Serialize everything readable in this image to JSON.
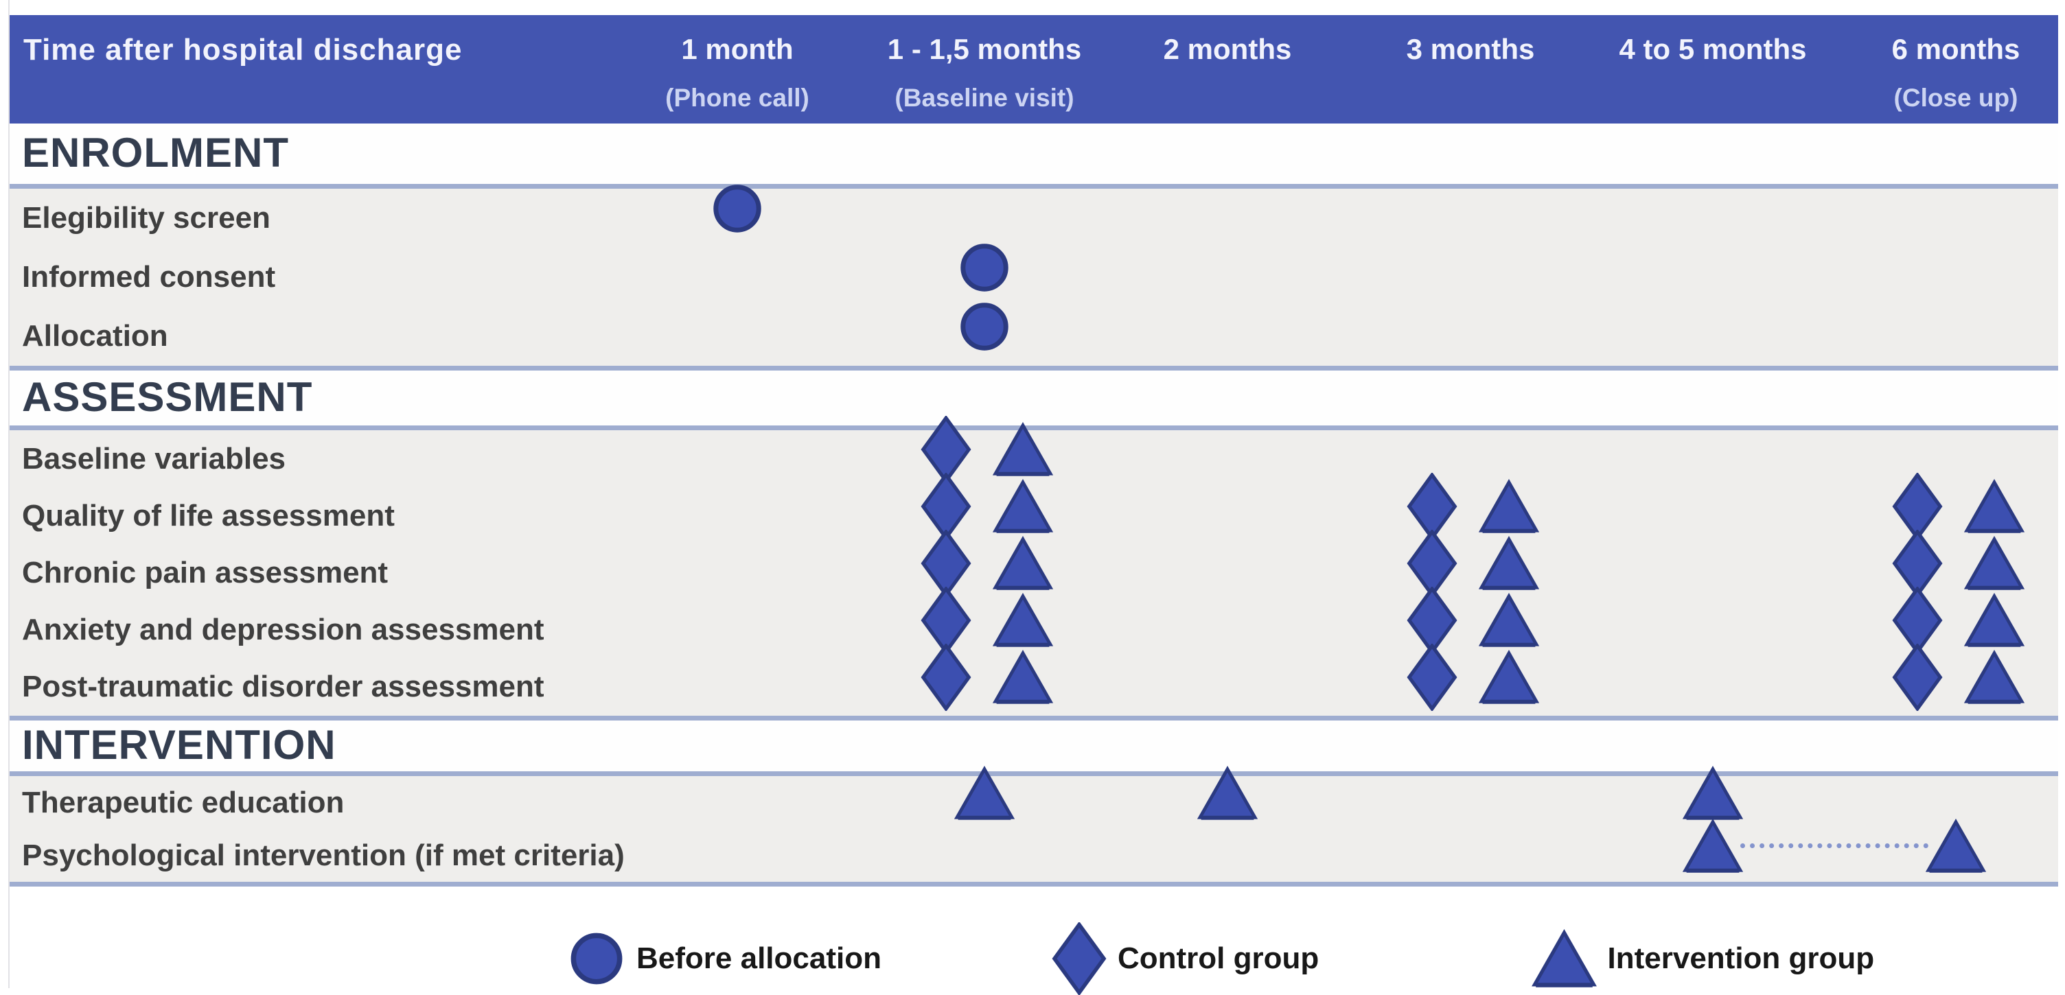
{
  "figure": {
    "title": "Time after hospital discharge",
    "columns": [
      {
        "label": "1 month",
        "sublabel": "(Phone call)"
      },
      {
        "label": "1 - 1,5 months",
        "sublabel": "(Baseline visit)"
      },
      {
        "label": "2 months",
        "sublabel": ""
      },
      {
        "label": "3 months",
        "sublabel": ""
      },
      {
        "label": "4 to 5 months",
        "sublabel": ""
      },
      {
        "label": "6 months",
        "sublabel": "(Close up)"
      }
    ],
    "sections": [
      {
        "name": "ENROLMENT",
        "rows": [
          {
            "label": "Elegibility screen",
            "cells": [
              [
                "circle"
              ],
              [],
              [],
              [],
              [],
              []
            ]
          },
          {
            "label": "Informed consent",
            "cells": [
              [],
              [
                "circle"
              ],
              [],
              [],
              [],
              []
            ]
          },
          {
            "label": "Allocation",
            "cells": [
              [],
              [
                "circle"
              ],
              [],
              [],
              [],
              []
            ]
          }
        ]
      },
      {
        "name": "ASSESSMENT",
        "rows": [
          {
            "label": "Baseline variables",
            "cells": [
              [],
              [
                "diamond",
                "triangle"
              ],
              [],
              [],
              [],
              []
            ]
          },
          {
            "label": "Quality of life assessment",
            "cells": [
              [],
              [
                "diamond",
                "triangle"
              ],
              [],
              [
                "diamond",
                "triangle"
              ],
              [],
              [
                "diamond",
                "triangle"
              ]
            ]
          },
          {
            "label": "Chronic pain assessment",
            "cells": [
              [],
              [
                "diamond",
                "triangle"
              ],
              [],
              [
                "diamond",
                "triangle"
              ],
              [],
              [
                "diamond",
                "triangle"
              ]
            ]
          },
          {
            "label": "Anxiety and depression assessment",
            "cells": [
              [],
              [
                "diamond",
                "triangle"
              ],
              [],
              [
                "diamond",
                "triangle"
              ],
              [],
              [
                "diamond",
                "triangle"
              ]
            ]
          },
          {
            "label": "Post-traumatic disorder assessment",
            "cells": [
              [],
              [
                "diamond",
                "triangle"
              ],
              [],
              [
                "diamond",
                "triangle"
              ],
              [],
              [
                "diamond",
                "triangle"
              ]
            ]
          }
        ]
      },
      {
        "name": "INTERVENTION",
        "rows": [
          {
            "label": "Therapeutic education",
            "cells": [
              [],
              [
                "triangle"
              ],
              [
                "triangle"
              ],
              [],
              [
                "triangle"
              ],
              []
            ]
          },
          {
            "label": "Psychological intervention (if met criteria)",
            "cells": [
              [],
              [],
              [],
              [],
              [
                "triangle"
              ],
              [
                "triangle"
              ]
            ],
            "connector": {
              "from_column": 4,
              "to_column": 5,
              "style": "dashed"
            }
          }
        ]
      }
    ],
    "legend": [
      {
        "symbol": "circle",
        "label": "Before allocation"
      },
      {
        "symbol": "diamond",
        "label": "Control group"
      },
      {
        "symbol": "triangle",
        "label": "Intervention group"
      }
    ],
    "colors": {
      "header_bg": "#4355b0",
      "header_text": "#f2f3fc",
      "header_sub_text": "#ccd4f2",
      "symbol_fill": "#3c4fb0",
      "symbol_stroke": "#2b3a80",
      "divider": "#9fadd0",
      "row_band_bg": "#efeeec",
      "section_text": "#333d4f",
      "row_label_text": "#3f3f3f",
      "legend_text": "#181818",
      "connector": "#8494cd"
    }
  }
}
